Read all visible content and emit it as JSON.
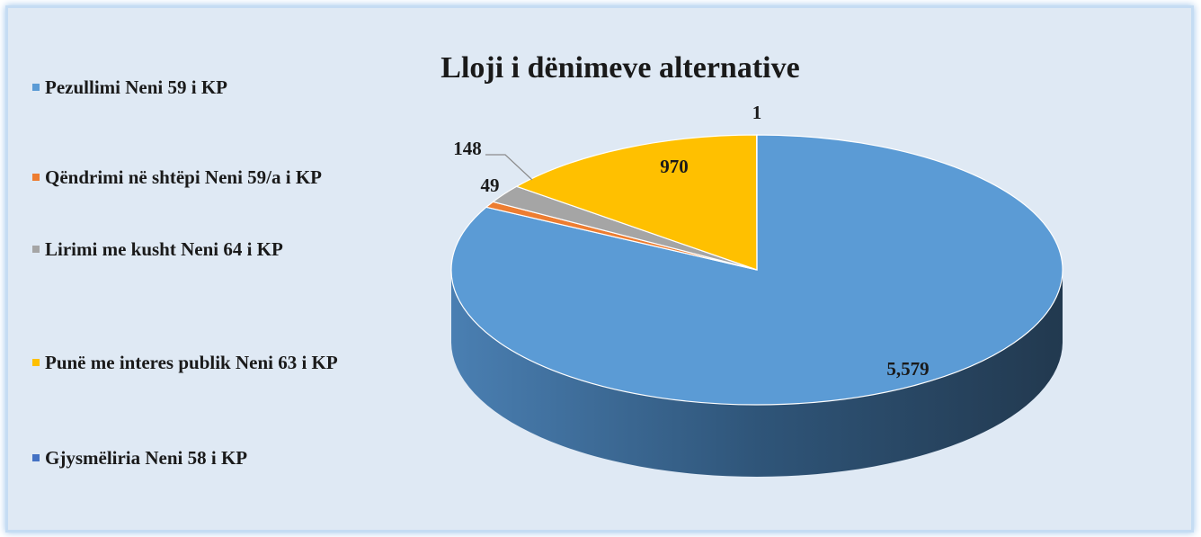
{
  "chart_data": {
    "type": "pie",
    "title": "Lloji i dënimeve alternative",
    "categories": [
      "Pezullimi  Neni 59 i KP",
      "Qëndrimi në shtëpi  Neni 59/a i KP",
      "Lirimi me kusht Neni 64 i KP",
      "Punë me interes publik Neni 63 i KP",
      "Gjysmëliria Neni 58 i KP"
    ],
    "values": [
      5579,
      49,
      148,
      970,
      1
    ],
    "value_labels": [
      "5,579",
      "49",
      "148",
      "970",
      "1"
    ],
    "colors": [
      "#5b9bd5",
      "#ed7d31",
      "#a5a5a5",
      "#ffc000",
      "#4472c4"
    ],
    "legend": "left"
  }
}
